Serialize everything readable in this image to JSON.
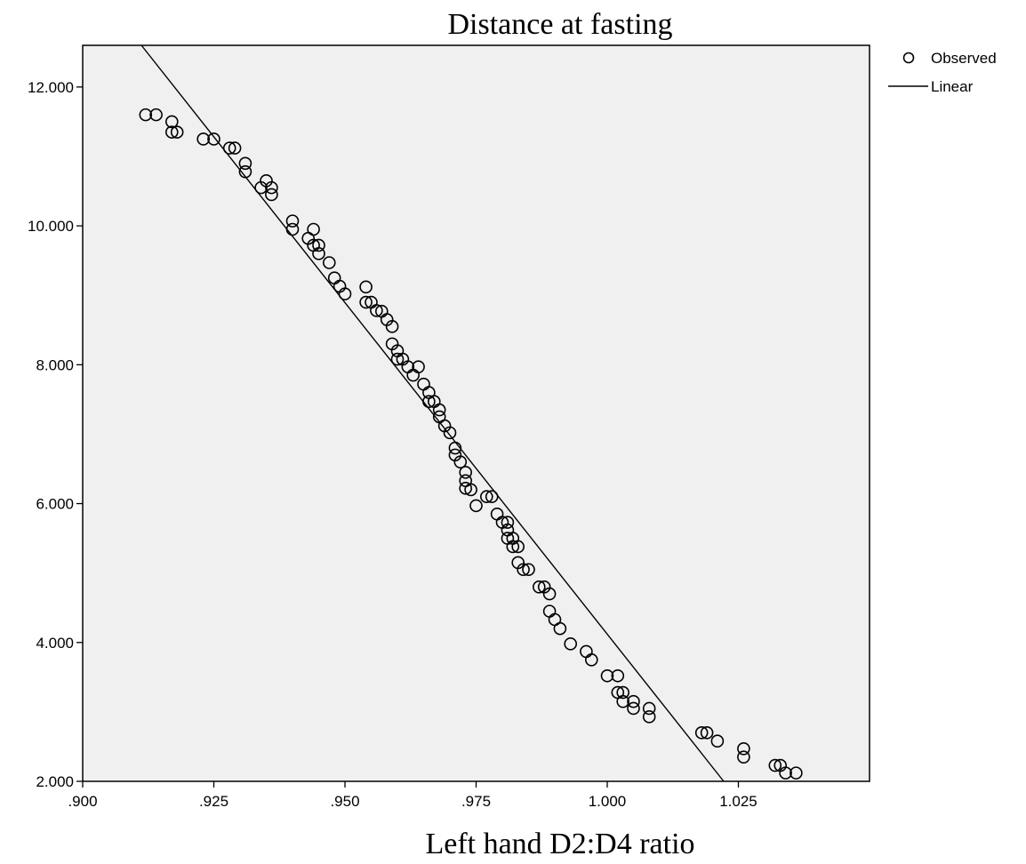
{
  "chart_data": {
    "type": "scatter",
    "title": "Distance at fasting",
    "xlabel": "Left hand D2:D4 ratio",
    "ylabel": "",
    "xlim": [
      0.9,
      1.05
    ],
    "ylim": [
      2.0,
      12.6
    ],
    "xticks": [
      ".900",
      ".925",
      ".950",
      ".975",
      "1.000",
      "1.025"
    ],
    "xtick_values": [
      0.9,
      0.925,
      0.95,
      0.975,
      1.0,
      1.025
    ],
    "yticks": [
      "2.000",
      "4.000",
      "6.000",
      "8.000",
      "10.000",
      "12.000"
    ],
    "ytick_values": [
      2,
      4,
      6,
      8,
      10,
      12
    ],
    "grid": false,
    "legend_position": "top-right, outside plot",
    "colors": {
      "plot_background": "#f0f0f0",
      "marker": "#000000",
      "line": "#000000"
    },
    "legend": [
      {
        "name": "Observed",
        "symbol": "open-circle"
      },
      {
        "name": "Linear",
        "symbol": "line"
      }
    ],
    "series": [
      {
        "name": "Observed",
        "kind": "scatter",
        "points": [
          [
            0.912,
            11.6
          ],
          [
            0.914,
            11.6
          ],
          [
            0.917,
            11.5
          ],
          [
            0.917,
            11.35
          ],
          [
            0.918,
            11.35
          ],
          [
            0.923,
            11.25
          ],
          [
            0.925,
            11.25
          ],
          [
            0.928,
            11.12
          ],
          [
            0.929,
            11.12
          ],
          [
            0.931,
            10.9
          ],
          [
            0.931,
            10.78
          ],
          [
            0.934,
            10.55
          ],
          [
            0.935,
            10.65
          ],
          [
            0.936,
            10.55
          ],
          [
            0.936,
            10.45
          ],
          [
            0.94,
            10.07
          ],
          [
            0.94,
            9.95
          ],
          [
            0.943,
            9.82
          ],
          [
            0.944,
            9.95
          ],
          [
            0.944,
            9.72
          ],
          [
            0.945,
            9.72
          ],
          [
            0.945,
            9.6
          ],
          [
            0.947,
            9.47
          ],
          [
            0.948,
            9.25
          ],
          [
            0.949,
            9.13
          ],
          [
            0.95,
            9.02
          ],
          [
            0.954,
            9.12
          ],
          [
            0.954,
            8.9
          ],
          [
            0.955,
            8.9
          ],
          [
            0.956,
            8.78
          ],
          [
            0.957,
            8.77
          ],
          [
            0.958,
            8.65
          ],
          [
            0.959,
            8.55
          ],
          [
            0.959,
            8.3
          ],
          [
            0.96,
            8.2
          ],
          [
            0.96,
            8.08
          ],
          [
            0.961,
            8.08
          ],
          [
            0.962,
            7.97
          ],
          [
            0.963,
            7.85
          ],
          [
            0.964,
            7.97
          ],
          [
            0.965,
            7.72
          ],
          [
            0.966,
            7.6
          ],
          [
            0.966,
            7.47
          ],
          [
            0.967,
            7.47
          ],
          [
            0.968,
            7.35
          ],
          [
            0.968,
            7.25
          ],
          [
            0.969,
            7.12
          ],
          [
            0.97,
            7.02
          ],
          [
            0.971,
            6.8
          ],
          [
            0.971,
            6.7
          ],
          [
            0.972,
            6.6
          ],
          [
            0.973,
            6.45
          ],
          [
            0.973,
            6.33
          ],
          [
            0.973,
            6.22
          ],
          [
            0.974,
            6.2
          ],
          [
            0.975,
            5.97
          ],
          [
            0.977,
            6.1
          ],
          [
            0.978,
            6.1
          ],
          [
            0.979,
            5.85
          ],
          [
            0.98,
            5.73
          ],
          [
            0.981,
            5.73
          ],
          [
            0.981,
            5.62
          ],
          [
            0.981,
            5.5
          ],
          [
            0.982,
            5.5
          ],
          [
            0.982,
            5.38
          ],
          [
            0.983,
            5.38
          ],
          [
            0.983,
            5.15
          ],
          [
            0.984,
            5.05
          ],
          [
            0.985,
            5.05
          ],
          [
            0.987,
            4.8
          ],
          [
            0.988,
            4.8
          ],
          [
            0.989,
            4.7
          ],
          [
            0.989,
            4.45
          ],
          [
            0.99,
            4.33
          ],
          [
            0.991,
            4.2
          ],
          [
            0.993,
            3.98
          ],
          [
            0.996,
            3.87
          ],
          [
            0.997,
            3.75
          ],
          [
            1.0,
            3.52
          ],
          [
            1.002,
            3.52
          ],
          [
            1.002,
            3.28
          ],
          [
            1.003,
            3.28
          ],
          [
            1.003,
            3.15
          ],
          [
            1.005,
            3.15
          ],
          [
            1.005,
            3.05
          ],
          [
            1.008,
            3.05
          ],
          [
            1.008,
            2.93
          ],
          [
            1.018,
            2.7
          ],
          [
            1.019,
            2.7
          ],
          [
            1.021,
            2.58
          ],
          [
            1.026,
            2.47
          ],
          [
            1.026,
            2.35
          ],
          [
            1.032,
            2.23
          ],
          [
            1.033,
            2.23
          ],
          [
            1.034,
            2.12
          ],
          [
            1.036,
            2.12
          ]
        ]
      },
      {
        "name": "Linear",
        "kind": "line",
        "points": [
          [
            0.9112,
            12.6
          ],
          [
            1.0222,
            2.0
          ]
        ]
      }
    ]
  }
}
